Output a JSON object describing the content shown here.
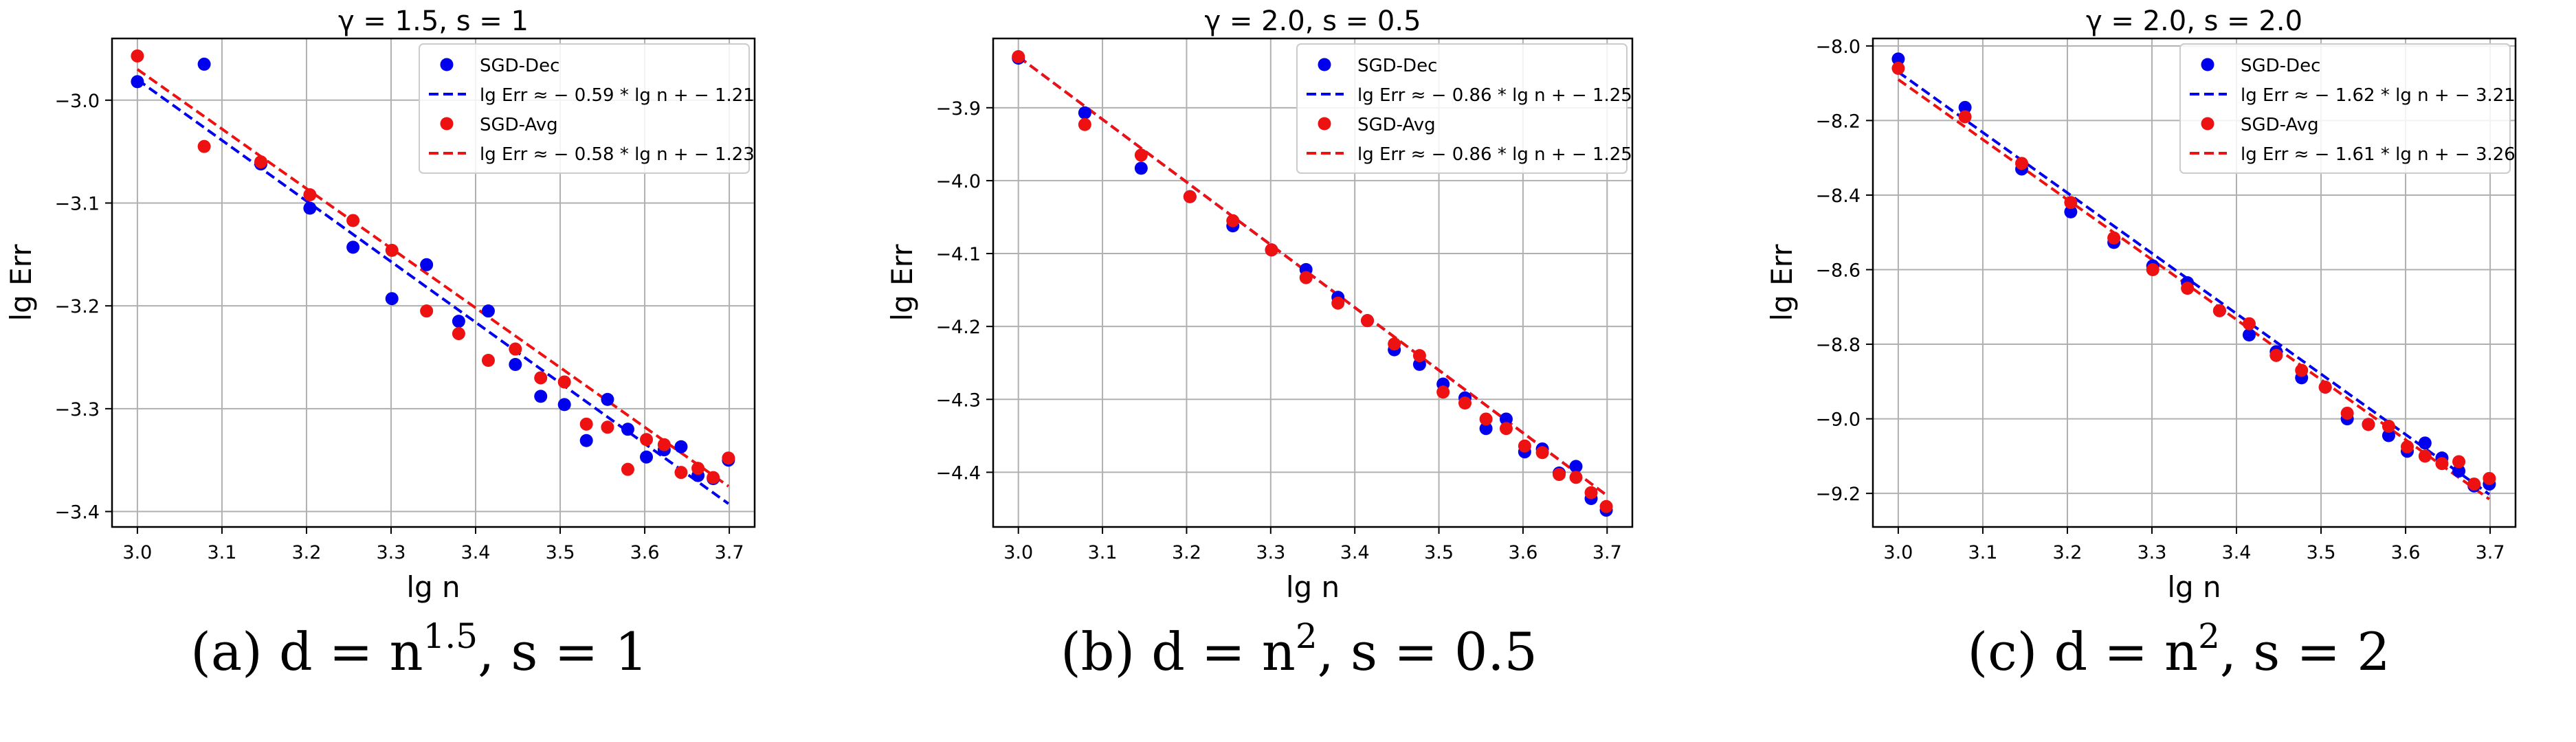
{
  "chart_data": [
    {
      "type": "scatter",
      "title": "γ = 1.5, s = 1",
      "caption": "(a) d = n^1.5, s = 1",
      "xlabel": "lg n",
      "ylabel": "lg Err",
      "xlim": [
        2.97,
        3.73
      ],
      "ylim": [
        -3.415,
        -2.94
      ],
      "xticks": [
        "3.0",
        "3.1",
        "3.2",
        "3.3",
        "3.4",
        "3.5",
        "3.6",
        "3.7"
      ],
      "yticks": [
        "-3.0",
        "-3.1",
        "-3.2",
        "-3.3",
        "-3.4"
      ],
      "grid": true,
      "legend_position": "top-right",
      "series": [
        {
          "name": "SGD-Dec",
          "kind": "points",
          "color": "#0000ee",
          "x": [
            3.0,
            3.079,
            3.146,
            3.204,
            3.255,
            3.301,
            3.342,
            3.38,
            3.415,
            3.447,
            3.477,
            3.505,
            3.531,
            3.556,
            3.58,
            3.602,
            3.623,
            3.643,
            3.663,
            3.681,
            3.699
          ],
          "y": [
            -2.982,
            -2.965,
            -3.062,
            -3.105,
            -3.143,
            -3.193,
            -3.16,
            -3.215,
            -3.205,
            -3.257,
            -3.288,
            -3.296,
            -3.331,
            -3.291,
            -3.32,
            -3.347,
            -3.34,
            -3.337,
            -3.365,
            -3.368,
            -3.35
          ]
        },
        {
          "name": "lg Err ≈ − 0.59 * lg n + − 1.21",
          "kind": "line",
          "color": "#0000ee",
          "x": [
            3.0,
            3.699
          ],
          "y": [
            -2.98,
            -3.3924
          ]
        },
        {
          "name": "SGD-Avg",
          "kind": "points",
          "color": "#ee1111",
          "x": [
            3.0,
            3.079,
            3.146,
            3.204,
            3.255,
            3.301,
            3.342,
            3.38,
            3.415,
            3.447,
            3.477,
            3.505,
            3.531,
            3.556,
            3.58,
            3.602,
            3.623,
            3.643,
            3.663,
            3.681,
            3.699
          ],
          "y": [
            -2.957,
            -3.045,
            -3.06,
            -3.092,
            -3.117,
            -3.146,
            -3.205,
            -3.227,
            -3.253,
            -3.242,
            -3.27,
            -3.274,
            -3.315,
            -3.318,
            -3.359,
            -3.33,
            -3.335,
            -3.362,
            -3.358,
            -3.367,
            -3.348
          ]
        },
        {
          "name": "lg Err ≈ − 0.58 * lg n + − 1.23",
          "kind": "line",
          "color": "#ee1111",
          "x": [
            3.0,
            3.699
          ],
          "y": [
            -2.97,
            -3.3754
          ]
        }
      ]
    },
    {
      "type": "scatter",
      "title": "γ = 2.0, s = 0.5",
      "caption": "(b) d = n^2, s = 0.5",
      "xlabel": "lg n",
      "ylabel": "lg Err",
      "xlim": [
        2.97,
        3.73
      ],
      "ylim": [
        -4.475,
        -3.805
      ],
      "xticks": [
        "3.0",
        "3.1",
        "3.2",
        "3.3",
        "3.4",
        "3.5",
        "3.6",
        "3.7"
      ],
      "yticks": [
        "-3.9",
        "-4.0",
        "-4.1",
        "-4.2",
        "-4.3",
        "-4.4"
      ],
      "grid": true,
      "legend_position": "top-right",
      "series": [
        {
          "name": "SGD-Dec",
          "kind": "points",
          "color": "#0000ee",
          "x": [
            3.0,
            3.079,
            3.146,
            3.204,
            3.255,
            3.301,
            3.342,
            3.38,
            3.415,
            3.447,
            3.477,
            3.505,
            3.531,
            3.556,
            3.58,
            3.602,
            3.623,
            3.643,
            3.663,
            3.681,
            3.699
          ],
          "y": [
            -3.832,
            -3.907,
            -3.983,
            -4.022,
            -4.062,
            -4.095,
            -4.122,
            -4.16,
            -4.192,
            -4.232,
            -4.252,
            -4.279,
            -4.298,
            -4.34,
            -4.327,
            -4.372,
            -4.368,
            -4.401,
            -4.392,
            -4.436,
            -4.452
          ]
        },
        {
          "name": "lg Err ≈ − 0.86 * lg n + − 1.25",
          "kind": "line",
          "color": "#0000ee",
          "x": [
            3.0,
            3.699
          ],
          "y": [
            -3.83,
            -4.4311
          ]
        },
        {
          "name": "SGD-Avg",
          "kind": "points",
          "color": "#ee1111",
          "x": [
            3.0,
            3.079,
            3.146,
            3.204,
            3.255,
            3.301,
            3.342,
            3.38,
            3.415,
            3.447,
            3.477,
            3.505,
            3.531,
            3.556,
            3.58,
            3.602,
            3.623,
            3.643,
            3.663,
            3.681,
            3.699
          ],
          "y": [
            -3.83,
            -3.923,
            -3.965,
            -4.022,
            -4.055,
            -4.095,
            -4.133,
            -4.168,
            -4.192,
            -4.224,
            -4.24,
            -4.29,
            -4.305,
            -4.327,
            -4.34,
            -4.364,
            -4.373,
            -4.403,
            -4.407,
            -4.428,
            -4.447
          ]
        },
        {
          "name": "lg Err ≈ − 0.86 * lg n + − 1.25",
          "kind": "line",
          "color": "#ee1111",
          "x": [
            3.0,
            3.699
          ],
          "y": [
            -3.83,
            -4.4311
          ]
        }
      ]
    },
    {
      "type": "scatter",
      "title": "γ = 2.0, s = 2.0",
      "caption": "(c) d = n^2, s = 2",
      "xlabel": "lg n",
      "ylabel": "lg Err",
      "xlim": [
        2.97,
        3.73
      ],
      "ylim": [
        -9.29,
        -7.98
      ],
      "xticks": [
        "3.0",
        "3.1",
        "3.2",
        "3.3",
        "3.4",
        "3.5",
        "3.6",
        "3.7"
      ],
      "yticks": [
        "-8.0",
        "-8.2",
        "-8.4",
        "-8.6",
        "-8.8",
        "-9.0",
        "-9.2"
      ],
      "grid": true,
      "legend_position": "top-right",
      "series": [
        {
          "name": "SGD-Dec",
          "kind": "points",
          "color": "#0000ee",
          "x": [
            3.0,
            3.079,
            3.146,
            3.204,
            3.255,
            3.301,
            3.342,
            3.38,
            3.415,
            3.447,
            3.477,
            3.505,
            3.531,
            3.556,
            3.58,
            3.602,
            3.623,
            3.643,
            3.663,
            3.681,
            3.699
          ],
          "y": [
            -8.035,
            -8.165,
            -8.33,
            -8.445,
            -8.527,
            -8.59,
            -8.635,
            -8.71,
            -8.775,
            -8.82,
            -8.89,
            -8.915,
            -9.0,
            -9.015,
            -9.045,
            -9.087,
            -9.065,
            -9.105,
            -9.14,
            -9.18,
            -9.175
          ]
        },
        {
          "name": "lg Err ≈ − 1.62 * lg n + − 3.21",
          "kind": "line",
          "color": "#0000ee",
          "x": [
            3.0,
            3.699
          ],
          "y": [
            -8.07,
            -9.2024
          ]
        },
        {
          "name": "SGD-Avg",
          "kind": "points",
          "color": "#ee1111",
          "x": [
            3.0,
            3.079,
            3.146,
            3.204,
            3.255,
            3.301,
            3.342,
            3.38,
            3.415,
            3.447,
            3.477,
            3.505,
            3.531,
            3.556,
            3.58,
            3.602,
            3.623,
            3.643,
            3.663,
            3.681,
            3.699
          ],
          "y": [
            -8.06,
            -8.19,
            -8.315,
            -8.42,
            -8.515,
            -8.6,
            -8.65,
            -8.71,
            -8.745,
            -8.83,
            -8.87,
            -8.915,
            -8.985,
            -9.015,
            -9.02,
            -9.075,
            -9.1,
            -9.12,
            -9.115,
            -9.175,
            -9.16
          ]
        },
        {
          "name": "lg Err ≈ − 1.61 * lg n + − 3.26",
          "kind": "line",
          "color": "#ee1111",
          "x": [
            3.0,
            3.699
          ],
          "y": [
            -8.09,
            -9.2154
          ]
        }
      ]
    }
  ]
}
